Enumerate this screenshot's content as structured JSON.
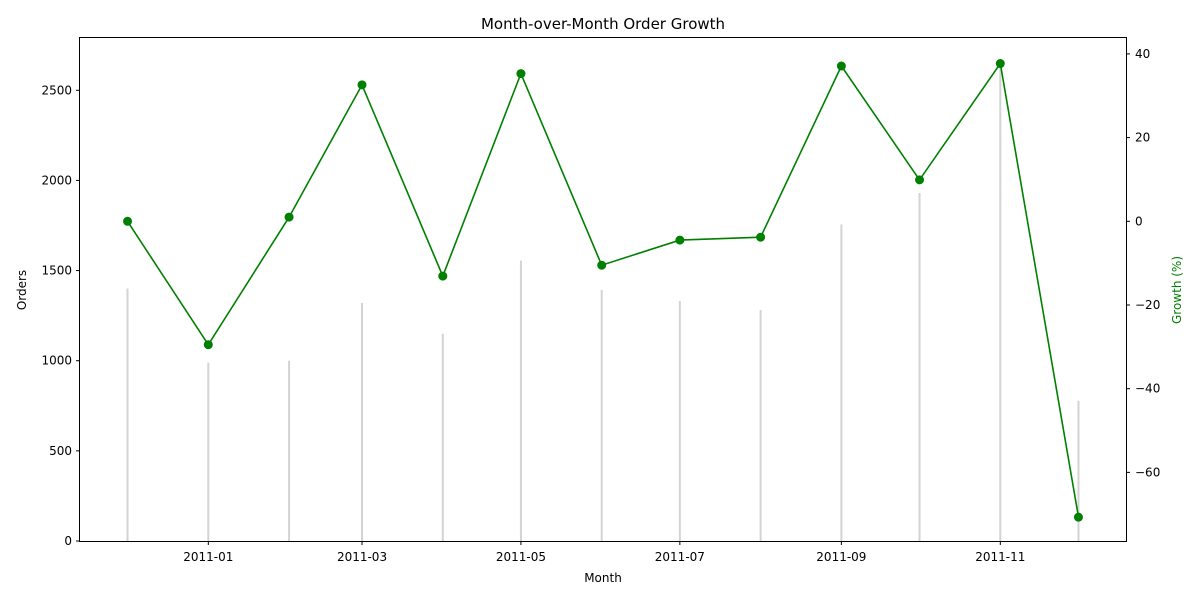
{
  "chart_data": {
    "type": "bar+line",
    "title": "Month-over-Month Order Growth",
    "xlabel": "Month",
    "ylabel_left": "Orders",
    "ylabel_right": "Growth (%)",
    "x_ticks": [
      "2011-01",
      "2011-03",
      "2011-05",
      "2011-07",
      "2011-09",
      "2011-11"
    ],
    "y_left_ticks": [
      0,
      500,
      1000,
      1500,
      2000,
      2500
    ],
    "y_right_ticks": [
      -60,
      -40,
      -20,
      0,
      20,
      40
    ],
    "ylim_left": [
      0,
      2790
    ],
    "ylim_right": [
      -76.4,
      43.8
    ],
    "grid": false,
    "months": [
      "2010-12-01",
      "2011-01-01",
      "2011-02-01",
      "2011-03-01",
      "2011-04-01",
      "2011-05-01",
      "2011-06-01",
      "2011-07-01",
      "2011-08-01",
      "2011-09-01",
      "2011-10-01",
      "2011-11-01",
      "2011-12-01"
    ],
    "series": [
      {
        "type": "bar",
        "axis": "left",
        "color": "#d3d3d3",
        "values": [
          1400,
          990,
          1000,
          1320,
          1150,
          1555,
          1393,
          1331,
          1281,
          1756,
          1930,
          2658,
          778
        ]
      },
      {
        "type": "line",
        "axis": "right",
        "color": "#008000",
        "values": [
          0,
          -29.5,
          1.0,
          32.6,
          -13.1,
          35.3,
          -10.5,
          -4.5,
          -3.8,
          37.1,
          9.9,
          37.7,
          -70.7
        ]
      }
    ]
  }
}
